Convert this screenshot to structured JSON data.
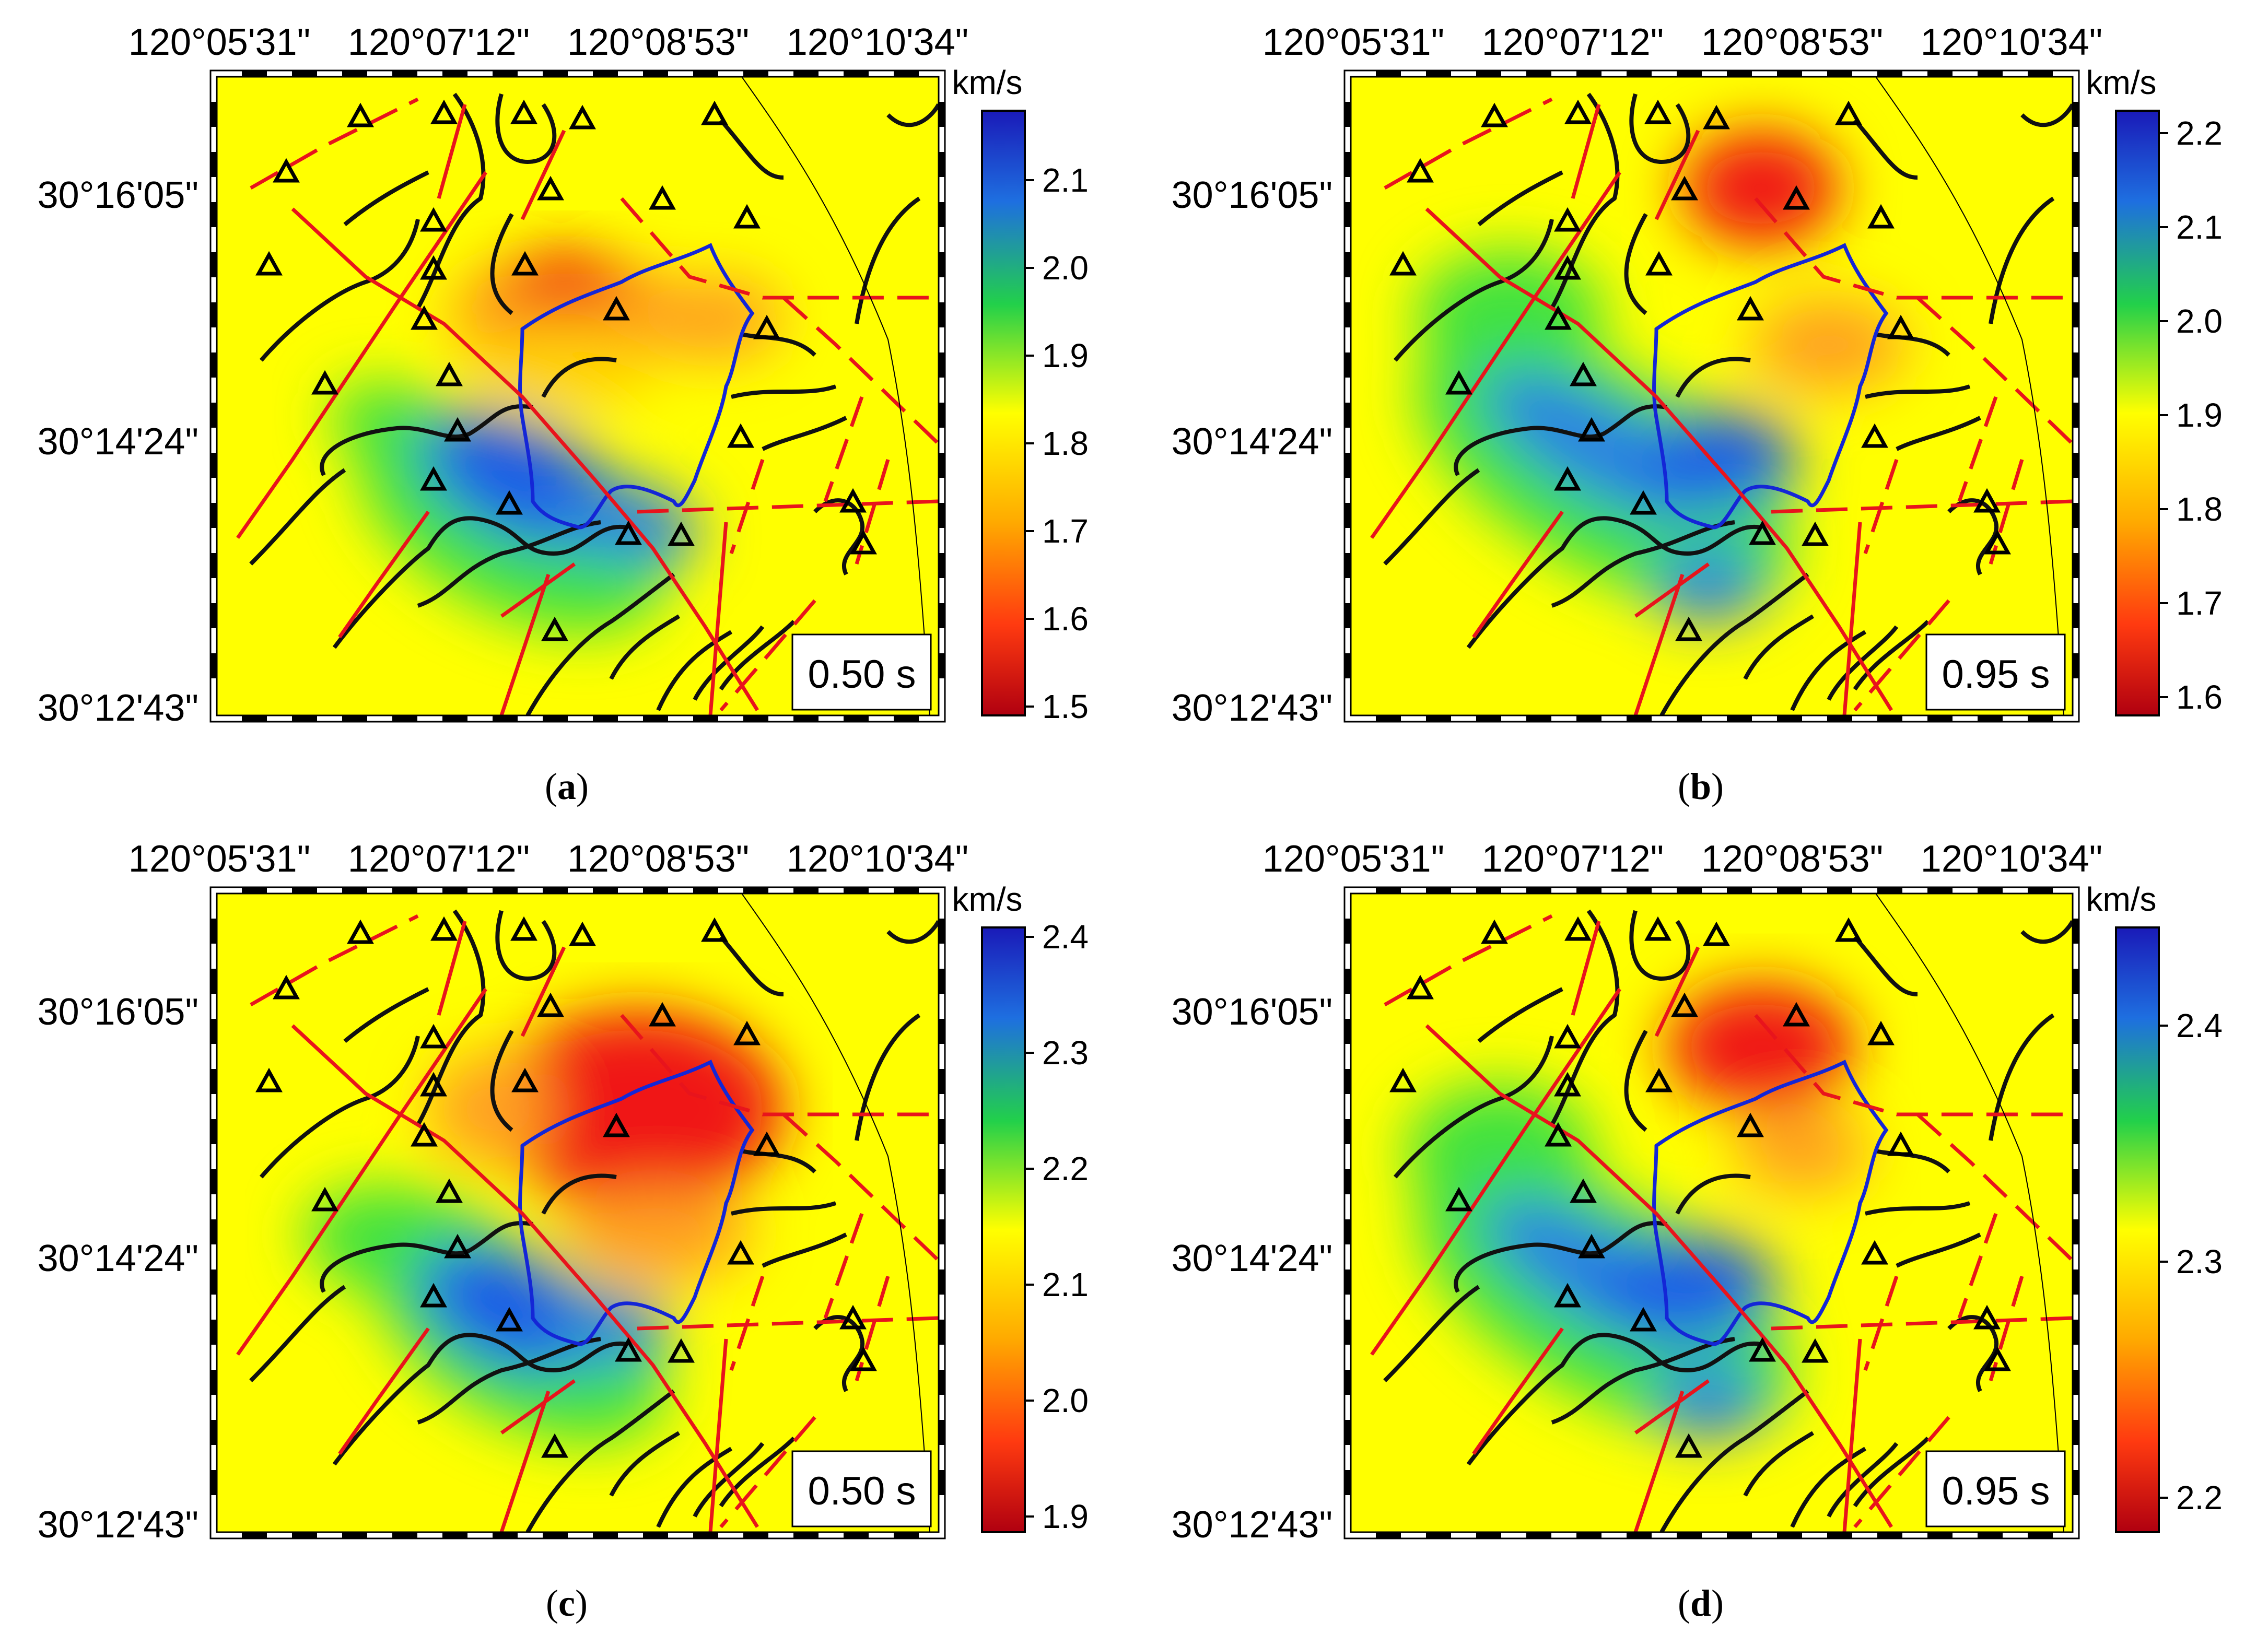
{
  "panels": [
    {
      "id": "a",
      "caption_letter": "a",
      "time_label": "0.50 s",
      "unit": "km/s",
      "colorbar_ticks": [
        "2.1",
        "2.0",
        "1.9",
        "1.8",
        "1.7",
        "1.6",
        "1.5"
      ],
      "x_ticks": [
        "120°05'31\"",
        "120°07'12\"",
        "120°08'53\"",
        "120°10'34\""
      ],
      "y_ticks": [
        "30°16'05\"",
        "30°14'24\"",
        "30°12'43\""
      ]
    },
    {
      "id": "b",
      "caption_letter": "b",
      "time_label": "0.95 s",
      "unit": "km/s",
      "colorbar_ticks": [
        "2.2",
        "2.1",
        "2.0",
        "1.9",
        "1.8",
        "1.7",
        "1.6"
      ],
      "x_ticks": [
        "120°05'31\"",
        "120°07'12\"",
        "120°08'53\"",
        "120°10'34\""
      ],
      "y_ticks": [
        "30°16'05\"",
        "30°14'24\"",
        "30°12'43\""
      ]
    },
    {
      "id": "c",
      "caption_letter": "c",
      "time_label": "0.50 s",
      "unit": "km/s",
      "colorbar_ticks": [
        "2.4",
        "2.3",
        "2.2",
        "2.1",
        "2.0",
        "1.9"
      ],
      "x_ticks": [
        "120°05'31\"",
        "120°07'12\"",
        "120°08'53\"",
        "120°10'34\""
      ],
      "y_ticks": [
        "30°16'05\"",
        "30°14'24\"",
        "30°12'43\""
      ]
    },
    {
      "id": "d",
      "caption_letter": "d",
      "time_label": "0.95 s",
      "unit": "km/s",
      "colorbar_ticks": [
        "2.4",
        "2.3",
        "2.2"
      ],
      "x_ticks": [
        "120°05'31\"",
        "120°07'12\"",
        "120°08'53\"",
        "120°10'34\""
      ],
      "y_ticks": [
        "30°16'05\"",
        "30°14'24\"",
        "30°12'43\""
      ]
    }
  ],
  "colors": {
    "fault": "#e8141c",
    "contour": "#111111",
    "boundary": "#1426d6",
    "background_field": "#ffff00",
    "high": "#1a3fd8",
    "low": "#e01010"
  }
}
